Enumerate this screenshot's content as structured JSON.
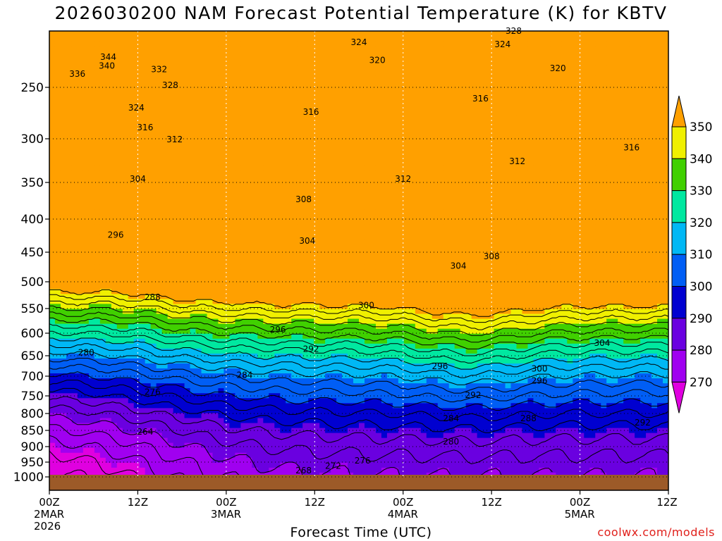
{
  "title": "2026030200 NAM Forecast Potential Temperature (K) for KBTV",
  "credit": "coolwx.com/models",
  "chart_data": {
    "type": "contour",
    "title": "2026030200 NAM Forecast Potential Temperature (K) for KBTV",
    "xlabel": "Forecast Time (UTC)",
    "ylabel": "Pressure (hPa)",
    "x_ticks": [
      {
        "hour": 0,
        "label": [
          "00Z",
          "2MAR",
          "2026"
        ]
      },
      {
        "hour": 12,
        "label": [
          "12Z"
        ]
      },
      {
        "hour": 24,
        "label": [
          "00Z",
          "3MAR"
        ]
      },
      {
        "hour": 36,
        "label": [
          "12Z"
        ]
      },
      {
        "hour": 48,
        "label": [
          "00Z",
          "4MAR"
        ]
      },
      {
        "hour": 60,
        "label": [
          "12Z"
        ]
      },
      {
        "hour": 72,
        "label": [
          "00Z",
          "5MAR"
        ]
      },
      {
        "hour": 84,
        "label": [
          "12Z"
        ]
      }
    ],
    "xlim": [
      0,
      84
    ],
    "y_ticks": [
      250,
      300,
      350,
      400,
      450,
      500,
      550,
      600,
      650,
      700,
      750,
      800,
      850,
      900,
      950,
      1000
    ],
    "ylim": [
      1020,
      200
    ],
    "colorbar": {
      "levels": [
        270,
        280,
        290,
        300,
        310,
        320,
        330,
        340,
        350
      ],
      "colors": [
        "#e000e0",
        "#a000f0",
        "#6a00e0",
        "#0000d0",
        "#005ef5",
        "#00b8f5",
        "#00e8a0",
        "#40d000",
        "#f0f000",
        "#ffa000"
      ]
    },
    "contour_labels": [
      {
        "value": "344",
        "hour": 8.0,
        "p": 223
      },
      {
        "value": "340",
        "hour": 7.8,
        "p": 231
      },
      {
        "value": "336",
        "hour": 3.8,
        "p": 238
      },
      {
        "value": "332",
        "hour": 14.9,
        "p": 234
      },
      {
        "value": "328",
        "hour": 16.4,
        "p": 248
      },
      {
        "value": "324",
        "hour": 11.8,
        "p": 270
      },
      {
        "value": "324",
        "hour": 42.0,
        "p": 210
      },
      {
        "value": "328",
        "hour": 63.0,
        "p": 200
      },
      {
        "value": "324",
        "hour": 61.5,
        "p": 212
      },
      {
        "value": "320",
        "hour": 44.5,
        "p": 226
      },
      {
        "value": "320",
        "hour": 69.0,
        "p": 233
      },
      {
        "value": "316",
        "hour": 13.0,
        "p": 289
      },
      {
        "value": "316",
        "hour": 35.5,
        "p": 274
      },
      {
        "value": "316",
        "hour": 58.5,
        "p": 261
      },
      {
        "value": "316",
        "hour": 79.0,
        "p": 310
      },
      {
        "value": "312",
        "hour": 17.0,
        "p": 301
      },
      {
        "value": "312",
        "hour": 48.0,
        "p": 346
      },
      {
        "value": "312",
        "hour": 63.5,
        "p": 326
      },
      {
        "value": "304",
        "hour": 12.0,
        "p": 346
      },
      {
        "value": "308",
        "hour": 34.5,
        "p": 373
      },
      {
        "value": "304",
        "hour": 35.0,
        "p": 433
      },
      {
        "value": "304",
        "hour": 55.5,
        "p": 473
      },
      {
        "value": "308",
        "hour": 60.0,
        "p": 457
      },
      {
        "value": "296",
        "hour": 9.0,
        "p": 424
      },
      {
        "value": "288",
        "hour": 14.0,
        "p": 529
      },
      {
        "value": "300",
        "hour": 43.0,
        "p": 544
      },
      {
        "value": "296",
        "hour": 31.0,
        "p": 593
      },
      {
        "value": "292",
        "hour": 35.5,
        "p": 635
      },
      {
        "value": "296",
        "hour": 53.0,
        "p": 676
      },
      {
        "value": "280",
        "hour": 5.0,
        "p": 643
      },
      {
        "value": "284",
        "hour": 26.5,
        "p": 697
      },
      {
        "value": "304",
        "hour": 75.0,
        "p": 622
      },
      {
        "value": "300",
        "hour": 66.5,
        "p": 682
      },
      {
        "value": "296",
        "hour": 66.5,
        "p": 712
      },
      {
        "value": "276",
        "hour": 14.0,
        "p": 740
      },
      {
        "value": "292",
        "hour": 57.5,
        "p": 748
      },
      {
        "value": "284",
        "hour": 54.5,
        "p": 815
      },
      {
        "value": "288",
        "hour": 65.0,
        "p": 815
      },
      {
        "value": "292",
        "hour": 80.5,
        "p": 827
      },
      {
        "value": "264",
        "hour": 13.0,
        "p": 854
      },
      {
        "value": "280",
        "hour": 54.5,
        "p": 885
      },
      {
        "value": "276",
        "hour": 42.5,
        "p": 945
      },
      {
        "value": "272",
        "hour": 38.5,
        "p": 963
      },
      {
        "value": "268",
        "hour": 34.5,
        "p": 978
      }
    ]
  },
  "x_axis": {
    "title": "Forecast Time (UTC)"
  }
}
